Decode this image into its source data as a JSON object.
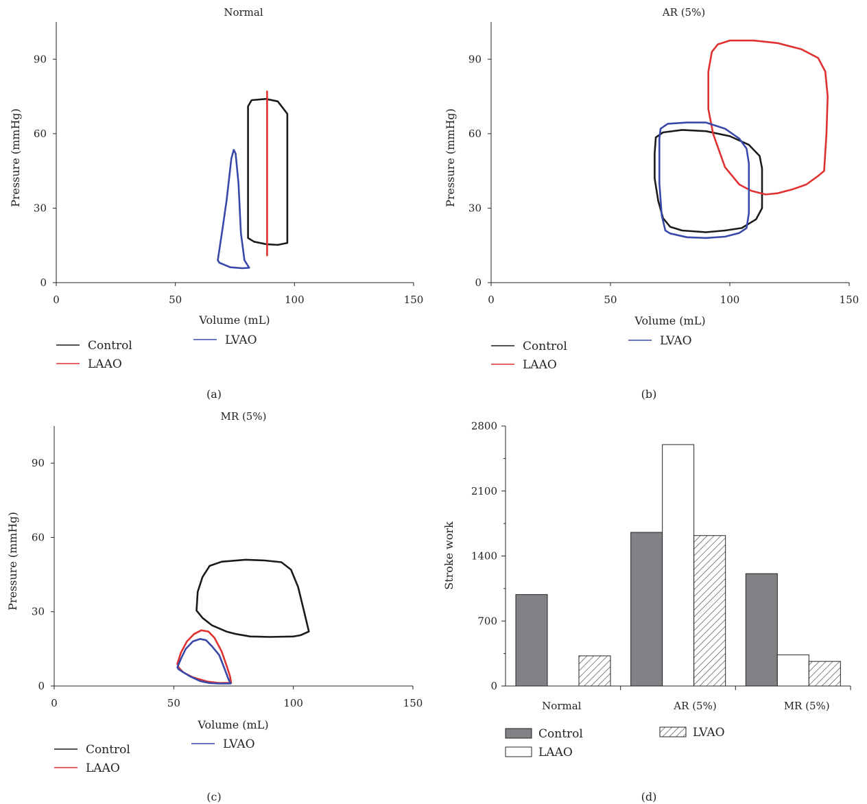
{
  "colors": {
    "control": "#1a1a1a",
    "laao": "#e03030",
    "lvao": "#3848a8",
    "bar_control": "#808285",
    "bar_laao": "#ffffff"
  },
  "chart_data": [
    {
      "id": "a",
      "type": "line",
      "panel_label": "(a)",
      "title": "Normal",
      "xlabel": "Volume (mL)",
      "ylabel": "Pressure (mmHg)",
      "xlim": [
        0,
        150
      ],
      "ylim": [
        0,
        105
      ],
      "xticks": [
        0,
        50,
        100,
        150
      ],
      "yticks": [
        0,
        30,
        60,
        90
      ],
      "legend": [
        "Control",
        "LAAO",
        "LVAO"
      ],
      "series": [
        {
          "name": "Control",
          "color_key": "control",
          "points": [
            [
              80.5,
              18
            ],
            [
              80.5,
              71
            ],
            [
              82,
              73.5
            ],
            [
              88,
              74
            ],
            [
              93,
              73
            ],
            [
              97,
              68
            ],
            [
              97,
              16
            ],
            [
              93,
              15.2
            ],
            [
              88,
              15.5
            ],
            [
              83,
              16.5
            ],
            [
              80.5,
              18
            ]
          ]
        },
        {
          "name": "LAAO",
          "color_key": "laao",
          "points": [
            [
              88.5,
              11
            ],
            [
              88.5,
              77
            ]
          ]
        },
        {
          "name": "LVAO",
          "color_key": "lvao",
          "points": [
            [
              67.8,
              9
            ],
            [
              70,
              23
            ],
            [
              71.5,
              33
            ],
            [
              73.5,
              50
            ],
            [
              74.5,
              53.5
            ],
            [
              75.3,
              52
            ],
            [
              76.5,
              40
            ],
            [
              77.5,
              20
            ],
            [
              79,
              9
            ],
            [
              81,
              6
            ],
            [
              78,
              5.8
            ],
            [
              73,
              6.2
            ],
            [
              68.5,
              8
            ],
            [
              67.8,
              9
            ]
          ]
        }
      ]
    },
    {
      "id": "b",
      "type": "line",
      "panel_label": "(b)",
      "title": "AR (5%)",
      "xlabel": "Volume (mL)",
      "ylabel": "Pressure (mmHg)",
      "xlim": [
        0,
        150
      ],
      "ylim": [
        0,
        105
      ],
      "xticks": [
        0,
        50,
        100,
        150
      ],
      "yticks": [
        0,
        30,
        60,
        90
      ],
      "legend": [
        "Control",
        "LAAO",
        "LVAO"
      ],
      "series": [
        {
          "name": "Control",
          "color_key": "control",
          "points": [
            [
              69,
              58.5
            ],
            [
              72,
              60.5
            ],
            [
              80,
              61.5
            ],
            [
              90,
              61
            ],
            [
              100,
              59
            ],
            [
              108,
              55.5
            ],
            [
              112.5,
              51
            ],
            [
              113.5,
              46
            ],
            [
              113.5,
              30
            ],
            [
              111,
              25.5
            ],
            [
              105,
              22
            ],
            [
              98,
              21
            ],
            [
              90,
              20.3
            ],
            [
              80,
              21
            ],
            [
              75,
              22.5
            ],
            [
              72,
              26
            ],
            [
              70,
              33
            ],
            [
              68.5,
              42
            ],
            [
              68.5,
              52
            ],
            [
              69,
              58.5
            ]
          ]
        },
        {
          "name": "LAAO",
          "color_key": "laao",
          "points": [
            [
              92.5,
              93
            ],
            [
              95,
              96
            ],
            [
              100,
              97.5
            ],
            [
              110,
              97.5
            ],
            [
              120,
              96.5
            ],
            [
              130,
              94
            ],
            [
              137,
              90.5
            ],
            [
              140,
              85
            ],
            [
              141,
              75
            ],
            [
              140.5,
              60
            ],
            [
              139.5,
              45
            ],
            [
              137,
              43
            ],
            [
              132,
              39.5
            ],
            [
              126,
              37.5
            ],
            [
              120,
              36
            ],
            [
              115,
              35.5
            ],
            [
              109,
              37
            ],
            [
              104,
              39.5
            ],
            [
              98,
              46.5
            ],
            [
              93,
              60
            ],
            [
              91,
              70
            ],
            [
              91,
              85
            ],
            [
              92.5,
              93
            ]
          ]
        },
        {
          "name": "LVAO",
          "color_key": "lvao",
          "points": [
            [
              71,
              62
            ],
            [
              74,
              64
            ],
            [
              82,
              64.5
            ],
            [
              90,
              64.5
            ],
            [
              98,
              62
            ],
            [
              104,
              58
            ],
            [
              107,
              54
            ],
            [
              108,
              48
            ],
            [
              108,
              28
            ],
            [
              107,
              22
            ],
            [
              104,
              20
            ],
            [
              98,
              18.5
            ],
            [
              90,
              18
            ],
            [
              82,
              18.3
            ],
            [
              75,
              19.8
            ],
            [
              73,
              21
            ],
            [
              71.5,
              27
            ],
            [
              70.5,
              40
            ],
            [
              70.5,
              58
            ],
            [
              71,
              62
            ]
          ]
        }
      ]
    },
    {
      "id": "c",
      "type": "line",
      "panel_label": "(c)",
      "title": "MR (5%)",
      "xlabel": "Volume (mL)",
      "ylabel": "Pressure (mmHg)",
      "xlim": [
        0,
        150
      ],
      "ylim": [
        0,
        105
      ],
      "xticks": [
        0,
        50,
        100,
        150
      ],
      "yticks": [
        0,
        30,
        60,
        90
      ],
      "legend": [
        "Control",
        "LAAO",
        "LVAO"
      ],
      "series": [
        {
          "name": "Control",
          "color_key": "control",
          "points": [
            [
              59.5,
              30.5
            ],
            [
              60,
              38
            ],
            [
              62,
              44
            ],
            [
              65,
              48.5
            ],
            [
              70,
              50.2
            ],
            [
              80,
              51
            ],
            [
              88,
              50.7
            ],
            [
              95,
              50
            ],
            [
              99,
              47
            ],
            [
              102,
              40
            ],
            [
              104.5,
              30
            ],
            [
              106.5,
              22
            ],
            [
              103,
              20.5
            ],
            [
              100,
              20
            ],
            [
              90,
              19.8
            ],
            [
              82,
              20
            ],
            [
              76,
              21
            ],
            [
              72,
              22
            ],
            [
              66,
              24.5
            ],
            [
              62,
              27.5
            ],
            [
              59.5,
              30.5
            ]
          ]
        },
        {
          "name": "LAAO",
          "color_key": "laao",
          "points": [
            [
              51.5,
              9
            ],
            [
              53,
              13.5
            ],
            [
              55.5,
              18
            ],
            [
              58.5,
              21
            ],
            [
              61.5,
              22.5
            ],
            [
              64.5,
              22
            ],
            [
              67,
              19.5
            ],
            [
              70,
              14
            ],
            [
              72,
              8.5
            ],
            [
              73.5,
              4
            ],
            [
              74,
              1.3
            ],
            [
              69,
              1.2
            ],
            [
              64,
              1.8
            ],
            [
              58,
              3.5
            ],
            [
              54,
              5.5
            ],
            [
              52,
              7.5
            ],
            [
              51.5,
              9
            ]
          ]
        },
        {
          "name": "LVAO",
          "color_key": "lvao",
          "points": [
            [
              51.5,
              7.5
            ],
            [
              53,
              11
            ],
            [
              55,
              15
            ],
            [
              58,
              18
            ],
            [
              61,
              19
            ],
            [
              63.5,
              18.5
            ],
            [
              66,
              16
            ],
            [
              69,
              12.5
            ],
            [
              71,
              7.5
            ],
            [
              73,
              2.5
            ],
            [
              73.8,
              1
            ],
            [
              69,
              1
            ],
            [
              65,
              1.2
            ],
            [
              61,
              2
            ],
            [
              57,
              3.8
            ],
            [
              54,
              5.5
            ],
            [
              52,
              6.8
            ],
            [
              51.5,
              7.5
            ]
          ]
        }
      ]
    },
    {
      "id": "d",
      "type": "bar",
      "panel_label": "(d)",
      "title": "",
      "xlabel": "",
      "ylabel": "Stroke work",
      "ylim": [
        0,
        2800
      ],
      "yticks": [
        0,
        700,
        1400,
        2100,
        2800
      ],
      "categories": [
        "Normal",
        "AR (5%)",
        "MR (5%)"
      ],
      "legend": [
        "Control",
        "LAAO",
        "LVAO"
      ],
      "series": [
        {
          "name": "Control",
          "fill": "solid-gray",
          "values": [
            985,
            1655,
            1210
          ]
        },
        {
          "name": "LAAO",
          "fill": "white",
          "values": [
            0,
            2600,
            335
          ]
        },
        {
          "name": "LVAO",
          "fill": "hatched",
          "values": [
            325,
            1620,
            265
          ]
        }
      ]
    }
  ]
}
